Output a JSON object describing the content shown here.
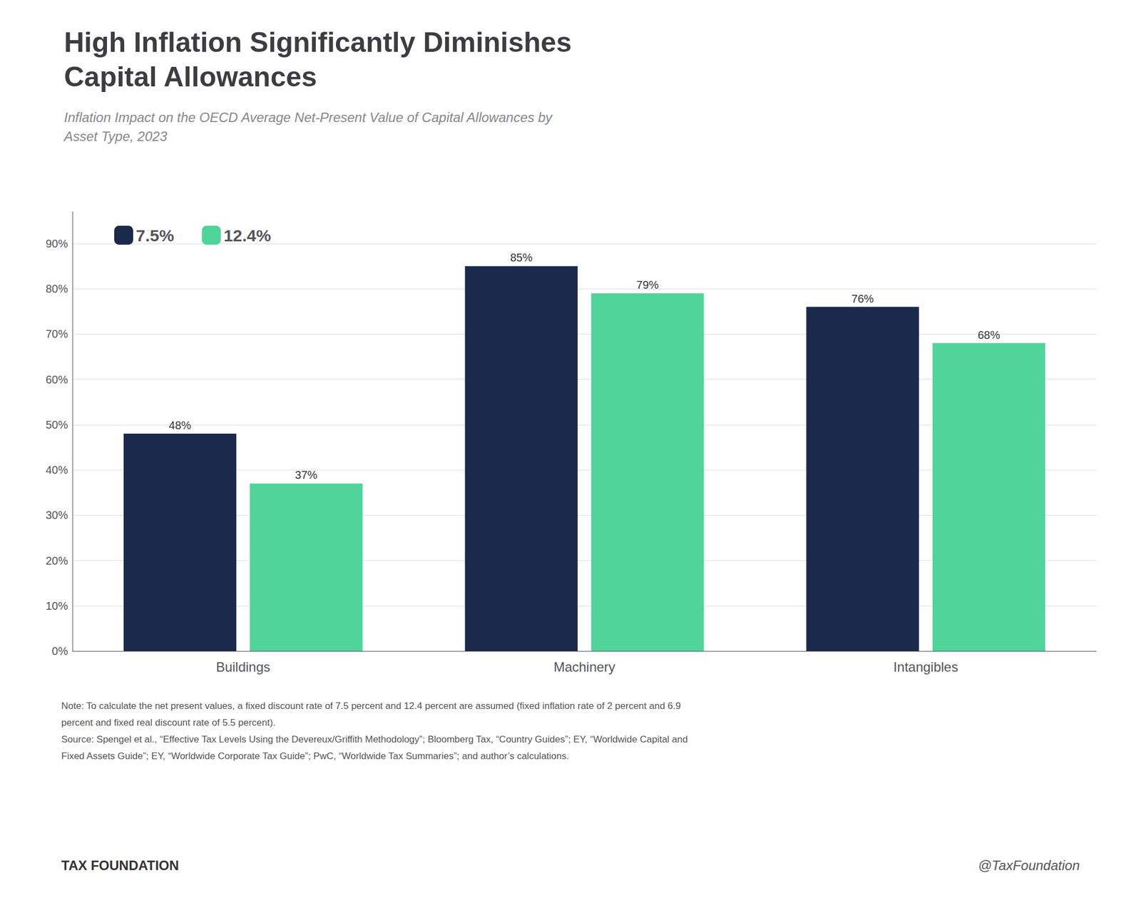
{
  "chart_data": {
    "type": "bar",
    "title": "High Inflation Significantly Diminishes\nCapital Allowances",
    "subtitle": "Inflation Impact on the OECD Average Net-Present Value of Capital Allowances by\nAsset Type, 2023",
    "categories": [
      "Buildings",
      "Machinery",
      "Intangibles"
    ],
    "series": [
      {
        "name": "7.5%",
        "color": "#1b2a4a",
        "values": [
          0.48,
          0.85,
          0.76
        ],
        "value_labels": [
          "48%",
          "85%",
          "76%"
        ]
      },
      {
        "name": "12.4%",
        "color": "#50d49a",
        "values": [
          0.37,
          0.79,
          0.68
        ],
        "value_labels": [
          "37%",
          "79%",
          "68%"
        ]
      }
    ],
    "ylim": [
      0,
      0.97
    ],
    "yticks": [
      {
        "value": 0.0,
        "label": "0%"
      },
      {
        "value": 0.1,
        "label": "10%"
      },
      {
        "value": 0.2,
        "label": "20%"
      },
      {
        "value": 0.3,
        "label": "30%"
      },
      {
        "value": 0.4,
        "label": "40%"
      },
      {
        "value": 0.5,
        "label": "50%"
      },
      {
        "value": 0.6,
        "label": "60%"
      },
      {
        "value": 0.7,
        "label": "70%"
      },
      {
        "value": 0.8,
        "label": "80%"
      },
      {
        "value": 0.9,
        "label": "90%"
      }
    ],
    "grid": true,
    "legend": "upper left",
    "data_labels": true,
    "notes": [
      "Note: To calculate the net present values, a fixed discount rate of 7.5 percent and 12.4 percent are assumed (fixed inflation rate of 2 percent and 6.9",
      "percent and fixed real discount rate of 5.5 percent).",
      "Source: Spengel et al., “Effective Tax Levels Using the Devereux/Griffith Methodology”; Bloomberg Tax, “Country Guides”; EY, “Worldwide Capital and",
      "Fixed Assets Guide”; EY, “Worldwide Corporate Tax Guide”; PwC, “Worldwide Tax Summaries”; and author’s calculations."
    ],
    "footer": [
      "TAX FOUNDATION",
      "@TaxFoundation"
    ]
  }
}
